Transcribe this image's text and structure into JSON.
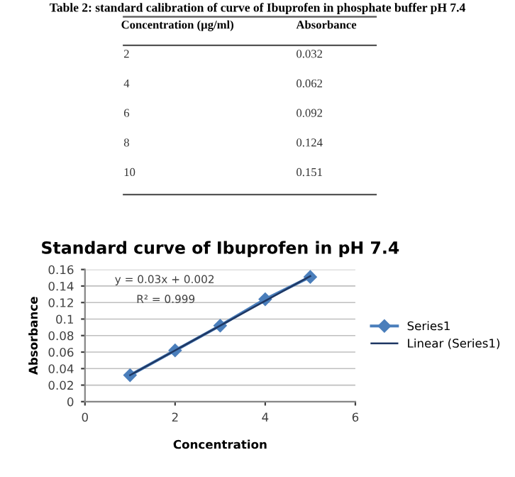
{
  "chart_data": {
    "type": "line",
    "title": "Standard curve of Ibuprofen in pH 7.4",
    "xlabel": "Concentration",
    "ylabel": "Absorbance",
    "x": [
      1,
      2,
      3,
      4,
      5
    ],
    "series": [
      {
        "name": "Series1",
        "color": "#4a7ebb",
        "marker": "diamond",
        "values": [
          0.032,
          0.062,
          0.092,
          0.124,
          0.151
        ]
      },
      {
        "name": "Linear (Series1)",
        "color": "#1f3864",
        "marker": "none",
        "x": [
          1,
          5
        ],
        "values": [
          0.032,
          0.152
        ]
      }
    ],
    "xlim": [
      0,
      6
    ],
    "xticks": [
      0,
      2,
      4,
      6
    ],
    "ylim": [
      0,
      0.16
    ],
    "yticks": [
      0,
      0.02,
      0.04,
      0.06,
      0.08,
      0.1,
      0.12,
      0.14,
      0.16
    ],
    "grid": "y",
    "legend": "right",
    "annotations": [
      "y = 0.03x + 0.002",
      "R² = 0.999",
      "Table 2: standard calibration of curve of Ibuprofen in phosphate buffer pH 7.4",
      "Concentration (µg/ml)",
      "Absorbance",
      "2",
      "0.032",
      "4",
      "0.062",
      "6",
      "0.092",
      "8",
      "0.124",
      "10",
      "0.151"
    ]
  }
}
